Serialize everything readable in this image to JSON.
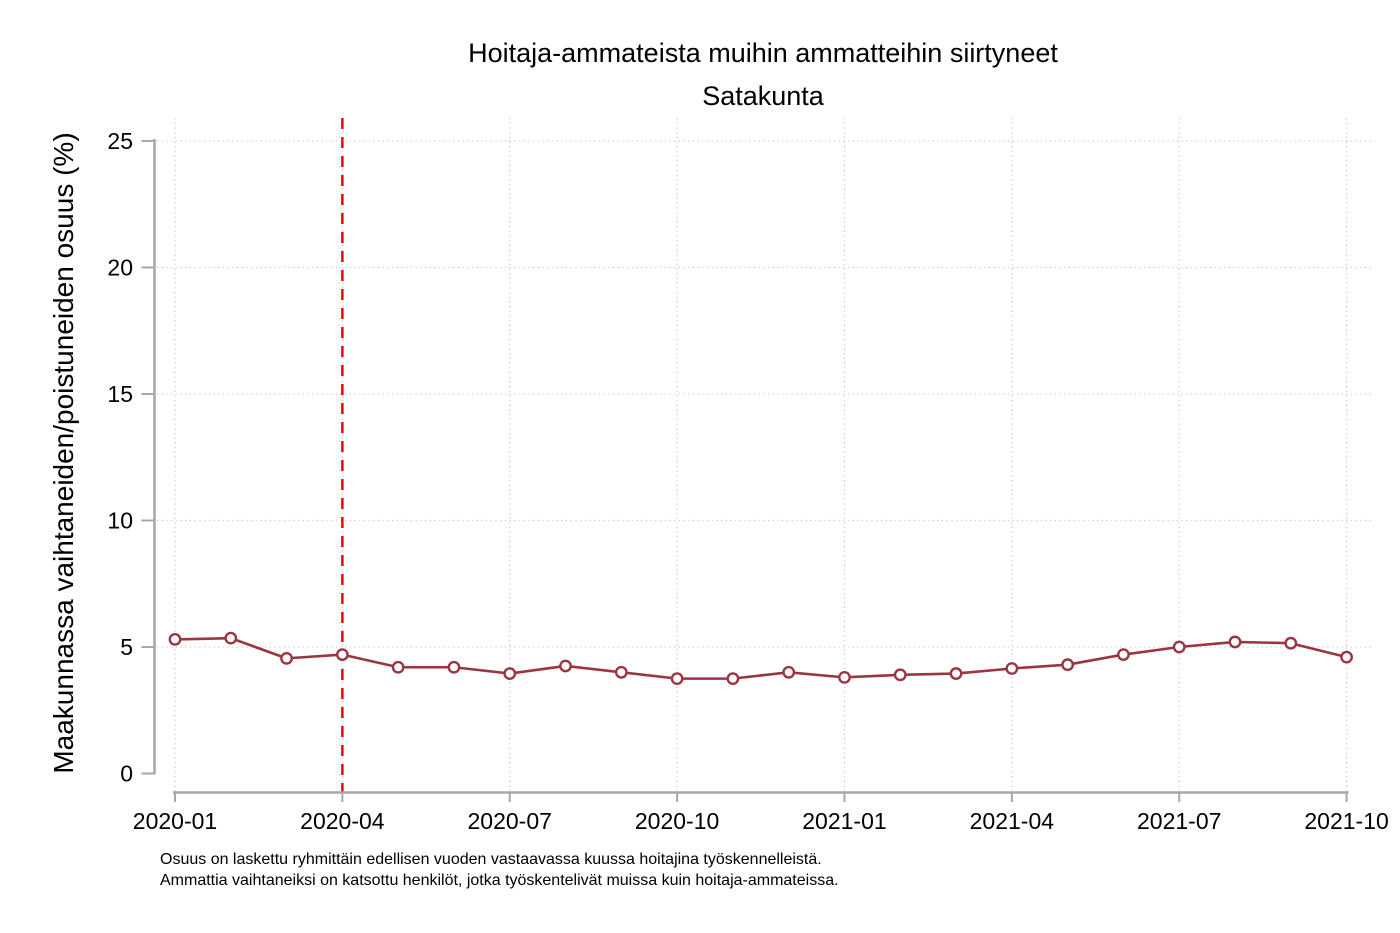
{
  "chart_data": {
    "type": "line",
    "title": "Hoitaja-ammateista muihin ammatteihin siirtyneet",
    "subtitle": "Satakunta",
    "xlabel": "",
    "ylabel": "Maakunnassa vaihtaneiden/poistuneiden osuus (%)",
    "x": [
      "2020-01",
      "2020-02",
      "2020-03",
      "2020-04",
      "2020-05",
      "2020-06",
      "2020-07",
      "2020-08",
      "2020-09",
      "2020-10",
      "2020-11",
      "2020-12",
      "2021-01",
      "2021-02",
      "2021-03",
      "2021-04",
      "2021-05",
      "2021-06",
      "2021-07",
      "2021-08",
      "2021-09",
      "2021-10"
    ],
    "series": [
      {
        "name": "Satakunta",
        "values": [
          5.3,
          5.35,
          4.55,
          4.7,
          4.2,
          4.2,
          3.95,
          4.25,
          4.0,
          3.75,
          3.75,
          4.0,
          3.8,
          3.9,
          3.95,
          4.15,
          4.3,
          4.7,
          5.0,
          5.2,
          5.15,
          4.6
        ]
      }
    ],
    "x_tick_labels": [
      "2020-01",
      "2020-04",
      "2020-07",
      "2020-10",
      "2021-01",
      "2021-04",
      "2021-07",
      "2021-10"
    ],
    "y_ticks": [
      0,
      5,
      10,
      15,
      20,
      25
    ],
    "y_gridlines": [
      5,
      10,
      15,
      20,
      25
    ],
    "ylim": [
      0,
      25
    ],
    "grid": "dotted",
    "legend": "none",
    "reference_line": {
      "orientation": "vertical",
      "x": "2020-04",
      "style": "dashed"
    },
    "footnotes": [
      "Osuus on laskettu ryhmittäin edellisen vuoden vastaavassa kuussa hoitajina työskennelleistä.",
      "Ammattia vaihtaneiksi on katsottu henkilöt, jotka työskentelivät muissa kuin hoitaja-ammateissa."
    ],
    "colors": {
      "line": "#9a3642",
      "marker_fill": "#ffffff",
      "reference_line": "#ff0000",
      "grid": "#cccccc",
      "axis": "#a8a8a8",
      "text": "#000000"
    }
  }
}
